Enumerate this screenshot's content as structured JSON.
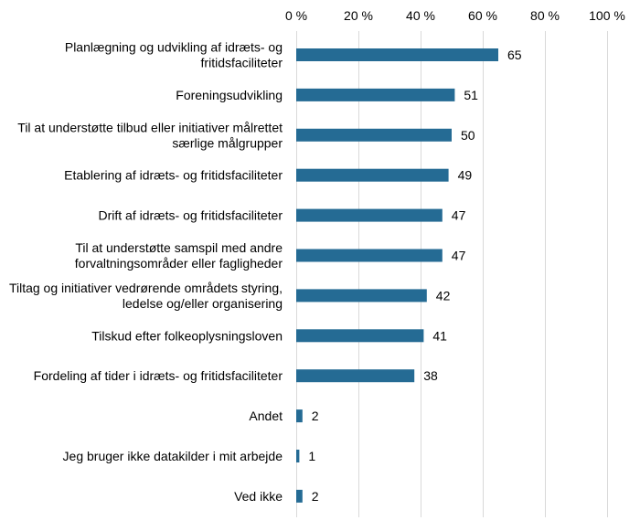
{
  "chart_data": {
    "type": "bar",
    "orientation": "horizontal",
    "title": "",
    "xlabel": "",
    "ylabel": "",
    "xlim": [
      0,
      100
    ],
    "axis_position": "top",
    "grid": true,
    "x_ticks": [
      0,
      20,
      40,
      60,
      80,
      100
    ],
    "x_tick_labels": [
      "0 %",
      "20 %",
      "40 %",
      "60 %",
      "80 %",
      "100 %"
    ],
    "categories": [
      [
        "Planlægning og udvikling af idræts- og",
        "fritidsfaciliteter"
      ],
      [
        "Foreningsudvikling"
      ],
      [
        "Til at understøtte tilbud eller initiativer målrettet",
        "særlige målgrupper"
      ],
      [
        "Etablering af idræts- og fritidsfaciliteter"
      ],
      [
        "Drift af idræts- og fritidsfaciliteter"
      ],
      [
        "Til at understøtte samspil med andre",
        "forvaltningsområder eller fagligheder"
      ],
      [
        "Tiltag og initiativer vedrørende områdets styring,",
        "ledelse og/eller organisering"
      ],
      [
        "Tilskud efter folkeoplysningsloven"
      ],
      [
        "Fordeling af tider i idræts- og fritidsfaciliteter"
      ],
      [
        "Andet"
      ],
      [
        "Jeg bruger ikke datakilder i mit arbejde"
      ],
      [
        "Ved ikke"
      ]
    ],
    "values": [
      65,
      51,
      50,
      49,
      47,
      47,
      42,
      41,
      38,
      2,
      1,
      2
    ],
    "bar_color": "#256b94"
  }
}
